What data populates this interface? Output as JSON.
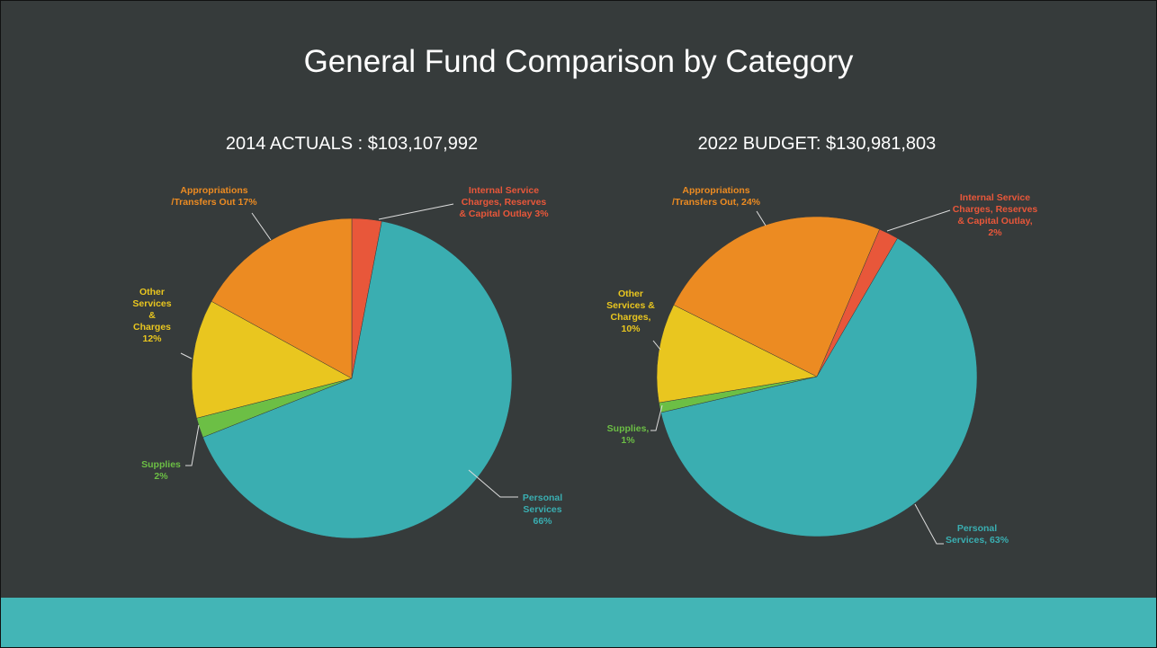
{
  "title": "General Fund Comparison by Category",
  "chart_data": [
    {
      "type": "pie",
      "title": "2014 ACTUALS : $103,107,992",
      "categories": [
        "Internal Service Charges, Reserves & Capital Outlay",
        "Personal Services",
        "Supplies",
        "Other Services & Charges",
        "Appropriations /Transfers Out"
      ],
      "values": [
        3,
        66,
        2,
        12,
        17
      ],
      "value_labels": [
        "3%",
        "66%",
        "2%",
        "12%",
        "17%"
      ],
      "colors": [
        "#e8573a",
        "#3aaeb1",
        "#6cbf45",
        "#e9c61f",
        "#ec8b22"
      ]
    },
    {
      "type": "pie",
      "title": "2022 BUDGET: $130,981,803",
      "categories": [
        "Internal Service Charges, Reserves & Capital Outlay,",
        "Personal Services,",
        "Supplies,",
        "Other Services & Charges,",
        "Appropriations /Transfers Out,"
      ],
      "values": [
        2,
        63,
        1,
        10,
        24
      ],
      "value_labels": [
        "2%",
        "63%",
        "1%",
        "10%",
        "24%"
      ],
      "colors": [
        "#e8573a",
        "#3aaeb1",
        "#6cbf45",
        "#e9c61f",
        "#ec8b22"
      ]
    }
  ]
}
